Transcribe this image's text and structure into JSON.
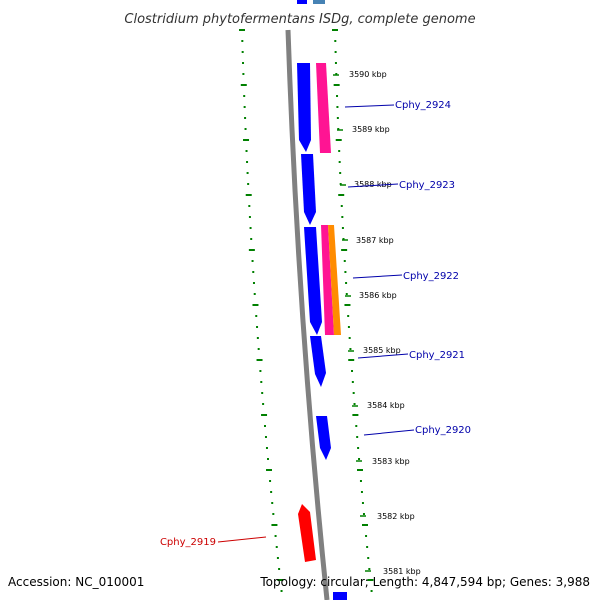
{
  "title": "Clostridium phytofermentans ISDg, complete genome",
  "footer": {
    "accession": "Accession: NC_010001",
    "summary": "Topology: circular; Length: 4,847,594 bp; Genes: 3,988"
  },
  "colors": {
    "backbone": "#808080",
    "cds_forward": "#0000ff",
    "cds_reverse": "#ff0000",
    "feature_magenta": "#ff1493",
    "feature_orange": "#ff8c00",
    "label_forward": "#0000aa",
    "label_reverse": "#cc0000",
    "tick_gc": "#008000"
  },
  "ruler": {
    "ticks": [
      {
        "label": "3590 kbp"
      },
      {
        "label": "3589 kbp"
      },
      {
        "label": "3588 kbp"
      },
      {
        "label": "3587 kbp"
      },
      {
        "label": "3586 kbp"
      },
      {
        "label": "3585 kbp"
      },
      {
        "label": "3584 kbp"
      },
      {
        "label": "3583 kbp"
      },
      {
        "label": "3582 kbp"
      },
      {
        "label": "3581 kbp"
      }
    ]
  },
  "genes": [
    {
      "name": "Cphy_2924",
      "strand": "forward"
    },
    {
      "name": "Cphy_2923",
      "strand": "forward"
    },
    {
      "name": "Cphy_2922",
      "strand": "forward"
    },
    {
      "name": "Cphy_2921",
      "strand": "forward"
    },
    {
      "name": "Cphy_2920",
      "strand": "forward"
    },
    {
      "name": "Cphy_2919",
      "strand": "reverse"
    }
  ]
}
